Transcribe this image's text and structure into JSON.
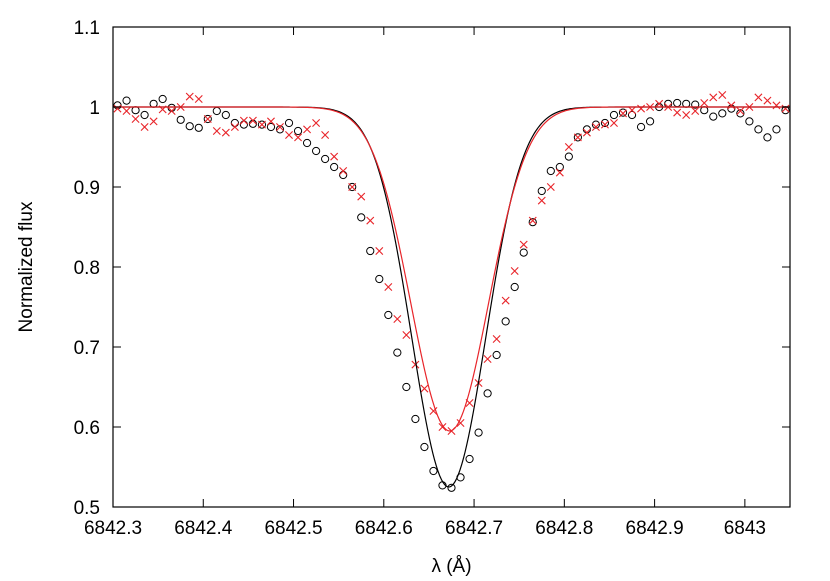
{
  "chart_data": {
    "type": "scatter",
    "title": "",
    "xlabel": "λ (Å)",
    "ylabel": "Normalized flux",
    "xlim": [
      6842.3,
      6843.05
    ],
    "ylim": [
      0.5,
      1.1
    ],
    "x_ticks": [
      6842.3,
      6842.4,
      6842.5,
      6842.6,
      6842.7,
      6842.8,
      6842.9,
      6843.0
    ],
    "x_tick_labels": [
      "6842.3",
      "6842.4",
      "6842.5",
      "6842.6",
      "6842.7",
      "6842.8",
      "6842.9",
      "6843"
    ],
    "y_ticks": [
      0.5,
      0.6,
      0.7,
      0.8,
      0.9,
      1.0,
      1.1
    ],
    "y_tick_labels": [
      "0.5",
      "0.6",
      "0.7",
      "0.8",
      "0.9",
      "1",
      "1.1"
    ],
    "grid": false,
    "legend": "none",
    "series": [
      {
        "marker": "circle",
        "color": "#000000",
        "points": [
          [
            6842.305,
            1.002
          ],
          [
            6842.315,
            1.008
          ],
          [
            6842.325,
            0.996
          ],
          [
            6842.335,
            0.99
          ],
          [
            6842.345,
            1.004
          ],
          [
            6842.355,
            1.01
          ],
          [
            6842.365,
            0.999
          ],
          [
            6842.375,
            0.984
          ],
          [
            6842.385,
            0.976
          ],
          [
            6842.395,
            0.974
          ],
          [
            6842.405,
            0.985
          ],
          [
            6842.415,
            0.995
          ],
          [
            6842.425,
            0.99
          ],
          [
            6842.435,
            0.98
          ],
          [
            6842.445,
            0.978
          ],
          [
            6842.455,
            0.979
          ],
          [
            6842.465,
            0.978
          ],
          [
            6842.475,
            0.975
          ],
          [
            6842.485,
            0.972
          ],
          [
            6842.495,
            0.98
          ],
          [
            6842.505,
            0.97
          ],
          [
            6842.515,
            0.955
          ],
          [
            6842.525,
            0.945
          ],
          [
            6842.535,
            0.935
          ],
          [
            6842.545,
            0.925
          ],
          [
            6842.555,
            0.915
          ],
          [
            6842.565,
            0.9
          ],
          [
            6842.575,
            0.862
          ],
          [
            6842.585,
            0.82
          ],
          [
            6842.595,
            0.785
          ],
          [
            6842.605,
            0.74
          ],
          [
            6842.615,
            0.693
          ],
          [
            6842.625,
            0.65
          ],
          [
            6842.635,
            0.61
          ],
          [
            6842.645,
            0.575
          ],
          [
            6842.655,
            0.545
          ],
          [
            6842.665,
            0.527
          ],
          [
            6842.675,
            0.524
          ],
          [
            6842.685,
            0.537
          ],
          [
            6842.695,
            0.56
          ],
          [
            6842.705,
            0.593
          ],
          [
            6842.715,
            0.642
          ],
          [
            6842.725,
            0.69
          ],
          [
            6842.735,
            0.732
          ],
          [
            6842.745,
            0.775
          ],
          [
            6842.755,
            0.818
          ],
          [
            6842.765,
            0.856
          ],
          [
            6842.775,
            0.895
          ],
          [
            6842.785,
            0.92
          ],
          [
            6842.795,
            0.925
          ],
          [
            6842.805,
            0.938
          ],
          [
            6842.815,
            0.962
          ],
          [
            6842.825,
            0.972
          ],
          [
            6842.835,
            0.978
          ],
          [
            6842.845,
            0.98
          ],
          [
            6842.855,
            0.99
          ],
          [
            6842.865,
            0.993
          ],
          [
            6842.875,
            0.99
          ],
          [
            6842.885,
            0.975
          ],
          [
            6842.895,
            0.982
          ],
          [
            6842.905,
            1.0
          ],
          [
            6842.915,
            1.004
          ],
          [
            6842.925,
            1.005
          ],
          [
            6842.935,
            1.004
          ],
          [
            6842.945,
            1.003
          ],
          [
            6842.955,
            0.996
          ],
          [
            6842.965,
            0.988
          ],
          [
            6842.975,
            0.992
          ],
          [
            6842.985,
            0.998
          ],
          [
            6842.995,
            0.992
          ],
          [
            6843.005,
            0.982
          ],
          [
            6843.015,
            0.972
          ],
          [
            6843.025,
            0.962
          ],
          [
            6843.035,
            0.972
          ],
          [
            6843.045,
            0.996
          ]
        ],
        "fit": {
          "depth": 0.475,
          "center": 6842.672,
          "sigma": 0.041
        }
      },
      {
        "marker": "cross",
        "color": "#e8252a",
        "points": [
          [
            6842.305,
            0.998
          ],
          [
            6842.315,
            0.995
          ],
          [
            6842.325,
            0.985
          ],
          [
            6842.335,
            0.975
          ],
          [
            6842.345,
            0.982
          ],
          [
            6842.355,
            0.997
          ],
          [
            6842.365,
            0.995
          ],
          [
            6842.375,
            1.0
          ],
          [
            6842.385,
            1.013
          ],
          [
            6842.395,
            1.01
          ],
          [
            6842.405,
            0.985
          ],
          [
            6842.415,
            0.97
          ],
          [
            6842.425,
            0.968
          ],
          [
            6842.435,
            0.975
          ],
          [
            6842.445,
            0.983
          ],
          [
            6842.455,
            0.983
          ],
          [
            6842.465,
            0.978
          ],
          [
            6842.475,
            0.982
          ],
          [
            6842.485,
            0.975
          ],
          [
            6842.495,
            0.965
          ],
          [
            6842.505,
            0.962
          ],
          [
            6842.515,
            0.972
          ],
          [
            6842.525,
            0.98
          ],
          [
            6842.535,
            0.965
          ],
          [
            6842.545,
            0.938
          ],
          [
            6842.555,
            0.92
          ],
          [
            6842.565,
            0.9
          ],
          [
            6842.575,
            0.888
          ],
          [
            6842.585,
            0.858
          ],
          [
            6842.595,
            0.82
          ],
          [
            6842.605,
            0.775
          ],
          [
            6842.615,
            0.735
          ],
          [
            6842.625,
            0.715
          ],
          [
            6842.635,
            0.678
          ],
          [
            6842.645,
            0.648
          ],
          [
            6842.655,
            0.62
          ],
          [
            6842.665,
            0.6
          ],
          [
            6842.675,
            0.595
          ],
          [
            6842.685,
            0.605
          ],
          [
            6842.695,
            0.63
          ],
          [
            6842.705,
            0.655
          ],
          [
            6842.715,
            0.685
          ],
          [
            6842.725,
            0.71
          ],
          [
            6842.735,
            0.758
          ],
          [
            6842.745,
            0.795
          ],
          [
            6842.755,
            0.828
          ],
          [
            6842.765,
            0.858
          ],
          [
            6842.775,
            0.883
          ],
          [
            6842.785,
            0.9
          ],
          [
            6842.795,
            0.918
          ],
          [
            6842.805,
            0.95
          ],
          [
            6842.815,
            0.962
          ],
          [
            6842.825,
            0.968
          ],
          [
            6842.835,
            0.975
          ],
          [
            6842.845,
            0.978
          ],
          [
            6842.855,
            0.98
          ],
          [
            6842.865,
            0.992
          ],
          [
            6842.875,
            0.996
          ],
          [
            6842.885,
            0.998
          ],
          [
            6842.895,
            1.0
          ],
          [
            6842.905,
            1.004
          ],
          [
            6842.915,
            1.0
          ],
          [
            6842.925,
            0.993
          ],
          [
            6842.935,
            0.99
          ],
          [
            6842.945,
            0.995
          ],
          [
            6842.955,
            1.005
          ],
          [
            6842.965,
            1.012
          ],
          [
            6842.975,
            1.015
          ],
          [
            6842.985,
            1.002
          ],
          [
            6842.995,
            0.995
          ],
          [
            6843.005,
            1.0
          ],
          [
            6843.015,
            1.012
          ],
          [
            6843.025,
            1.008
          ],
          [
            6843.035,
            1.002
          ],
          [
            6843.045,
            0.998
          ]
        ],
        "fit": {
          "depth": 0.405,
          "center": 6842.673,
          "sigma": 0.043
        }
      }
    ]
  }
}
